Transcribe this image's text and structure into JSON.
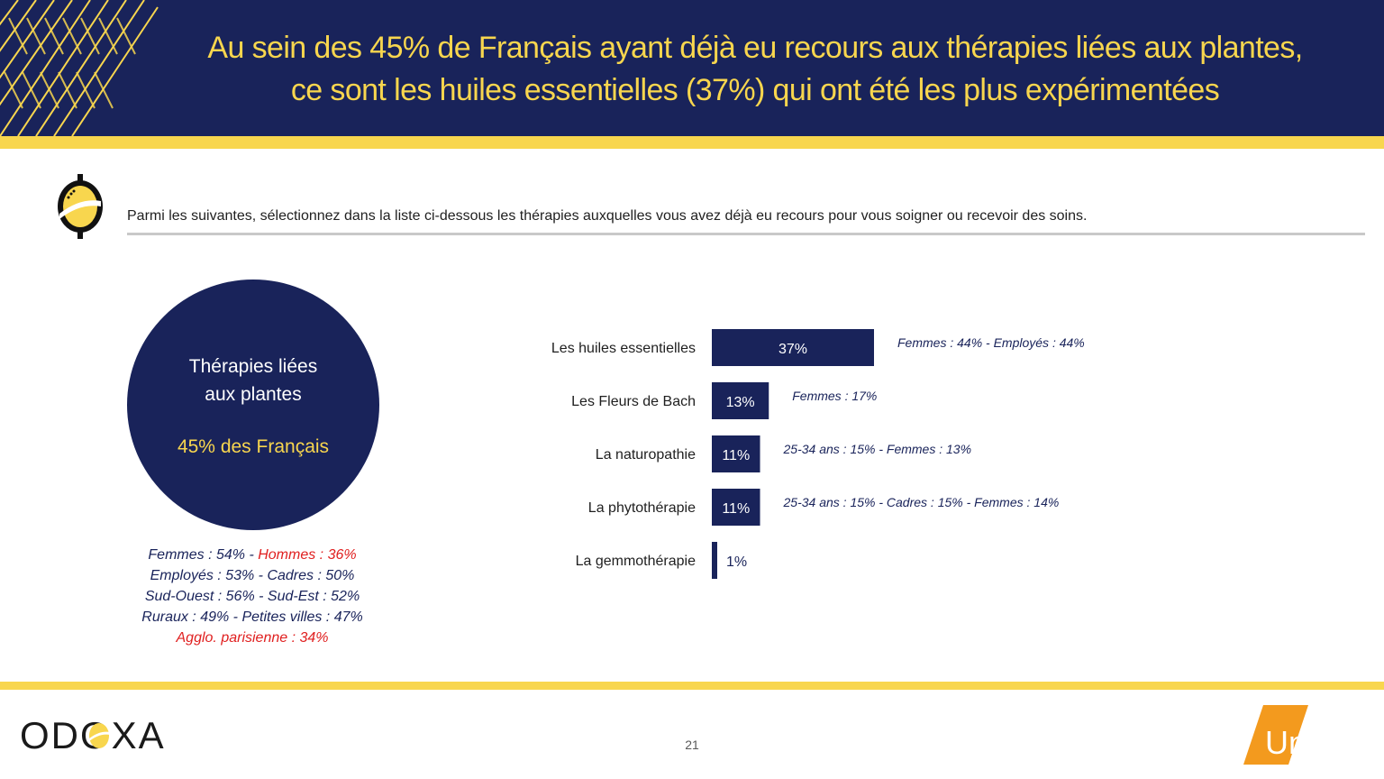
{
  "header": {
    "title_line1": "Au sein des 45% de Français ayant déjà eu recours aux thérapies liées aux plantes,",
    "title_line2": "ce sont les huiles essentielles (37%) qui ont été les plus expérimentées"
  },
  "question": "Parmi les suivantes, sélectionnez dans la liste ci-dessous les thérapies auxquelles vous avez déjà eu recours pour vous soigner ou recevoir des soins.",
  "circle": {
    "label_line1": "Thérapies liées",
    "label_line2": "aux plantes",
    "value": "45% des Français"
  },
  "demographics": [
    [
      {
        "text": "Femmes : 54%",
        "color": "navy"
      },
      {
        "text": " - ",
        "color": "navy"
      },
      {
        "text": "Hommes : 36%",
        "color": "red"
      }
    ],
    [
      {
        "text": "Employés : 53% - Cadres : 50%",
        "color": "navy"
      }
    ],
    [
      {
        "text": "Sud-Ouest : 56% - Sud-Est : 52%",
        "color": "navy"
      }
    ],
    [
      {
        "text": "Ruraux : 49% - Petites villes : 47%",
        "color": "navy"
      }
    ],
    [
      {
        "text": "Agglo. parisienne : 34%",
        "color": "red"
      }
    ]
  ],
  "chart_data": {
    "type": "bar",
    "orientation": "horizontal",
    "categories": [
      "Les huiles essentielles",
      "Les Fleurs de Bach",
      "La naturopathie",
      "La phytothérapie",
      "La gemmothérapie"
    ],
    "values": [
      37,
      13,
      11,
      11,
      1
    ],
    "value_labels": [
      "37%",
      "13%",
      "11%",
      "11%",
      "1%"
    ],
    "annotations": [
      "Femmes : 44% - Employés : 44%",
      "Femmes : 17%",
      "25-34 ans : 15% - Femmes : 13%",
      "25-34 ans : 15% - Cadres : 15% - Femmes : 14%",
      ""
    ],
    "bar_color": "#19235a"
  },
  "footer": {
    "page_number": "21",
    "logo_left": "ODOXA",
    "logo_right": "Unadfi"
  },
  "colors": {
    "navy": "#19235a",
    "yellow": "#f8d64e",
    "red": "#e02020",
    "orange": "#f39a1e"
  },
  "icons": {
    "question_icon": "odoxa-lemon-icon",
    "header_decoration": "chevron-pattern"
  }
}
